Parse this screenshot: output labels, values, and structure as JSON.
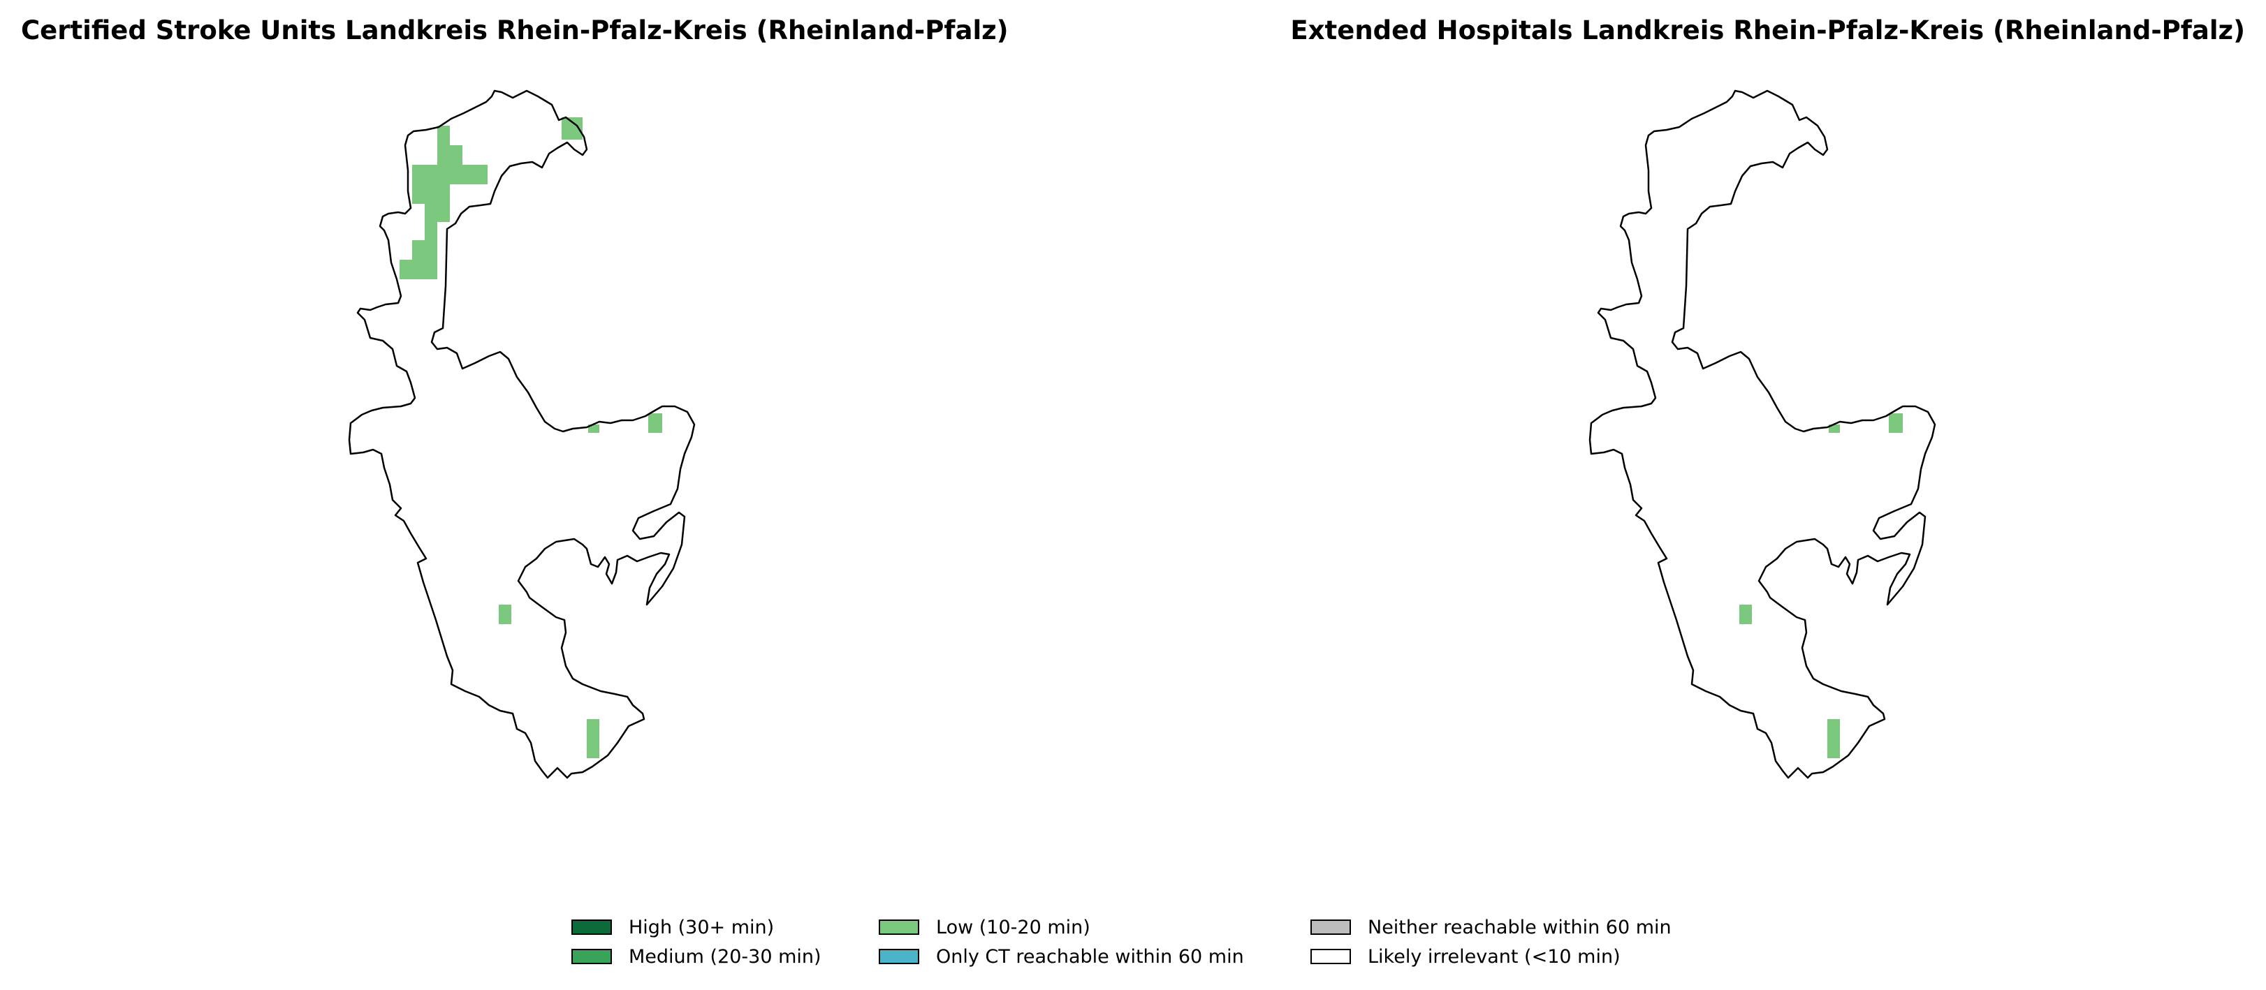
{
  "panels": [
    {
      "title": "Certified Stroke Units Landkreis Rhein-Pfalz-Kreis (Rheinland-Pfalz)"
    },
    {
      "title": "Extended Hospitals Landkreis Rhein-Pfalz-Kreis (Rheinland-Pfalz)"
    }
  ],
  "legend": [
    {
      "label": "High (30+ min)",
      "color": "#0b6b3a"
    },
    {
      "label": "Medium (20-30 min)",
      "color": "#3aa35a"
    },
    {
      "label": "Low (10-20 min)",
      "color": "#7dc87f"
    },
    {
      "label": "Only CT reachable within 60 min",
      "color": "#4ab3c7"
    },
    {
      "label": "Neither reachable within 60 min",
      "color": "#bdbdbd"
    },
    {
      "label": "Likely irrelevant (<10 min)",
      "color": "#ffffff"
    }
  ],
  "colors": {
    "outline": "#000000",
    "low_cells": "#7dc87f"
  }
}
